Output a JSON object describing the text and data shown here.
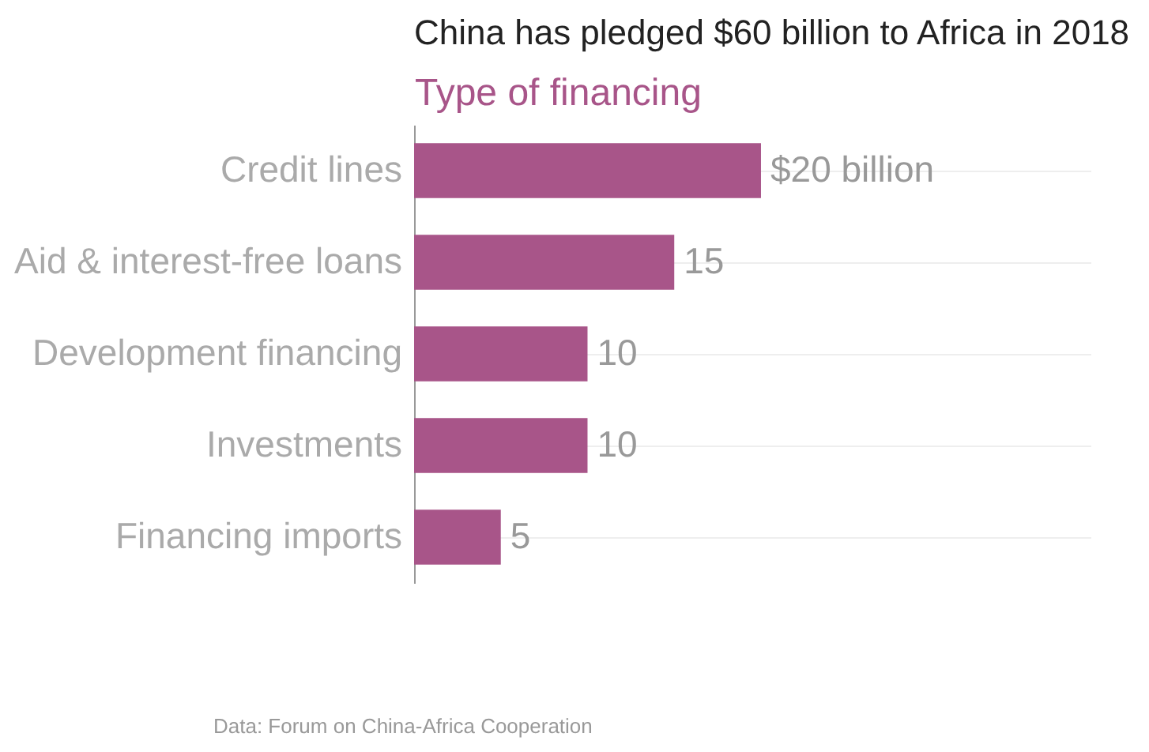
{
  "chart_data": {
    "type": "bar",
    "orientation": "horizontal",
    "title": "China has pledged $60 billion to Africa in 2018",
    "xlabel": "Type of financing",
    "categories": [
      "Credit lines",
      "Aid & interest-free loans",
      "Development financing",
      "Investments",
      "Financing imports"
    ],
    "values": [
      20,
      15,
      10,
      10,
      5
    ],
    "value_labels": [
      "$20 billion",
      "15",
      "10",
      "10",
      "5"
    ],
    "color": "#a85589",
    "xlim": [
      0,
      39
    ],
    "tick_labels": "y",
    "grid": "y",
    "annotations": [
      "Data: Forum on China-Africa Cooperation"
    ]
  }
}
